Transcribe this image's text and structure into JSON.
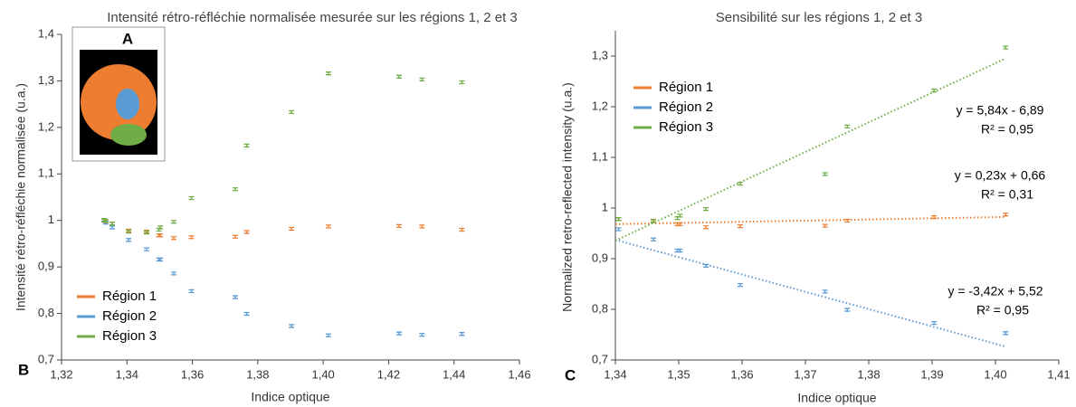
{
  "chart_data": [
    {
      "type": "scatter",
      "panel": "B",
      "inset_label": "A",
      "title": "Intensité rétro-réfléchie normalisée mesurée sur les régions 1, 2 et 3",
      "x_label": "Indice optique",
      "y_label": "Intensité rétro-réfléchie normalisée (u.a.)",
      "x": [
        1.333,
        1.3335,
        1.3355,
        1.3405,
        1.346,
        1.3498,
        1.3502,
        1.3543,
        1.3597,
        1.3731,
        1.3766,
        1.3903,
        1.4016,
        1.4232,
        1.4302,
        1.4424
      ],
      "series": [
        {
          "name": "Région 1",
          "color": "#ed7d31",
          "values": [
            1.0,
            0.998,
            0.993,
            0.978,
            0.976,
            0.968,
            0.968,
            0.962,
            0.964,
            0.965,
            0.975,
            0.982,
            0.987,
            0.988,
            0.987,
            0.98
          ]
        },
        {
          "name": "Région 2",
          "color": "#5b9bd5",
          "values": [
            1.0,
            0.995,
            0.985,
            0.958,
            0.938,
            0.916,
            0.916,
            0.886,
            0.848,
            0.835,
            0.799,
            0.773,
            0.753,
            0.757,
            0.754,
            0.756
          ]
        },
        {
          "name": "Région 3",
          "color": "#70ad47",
          "values": [
            1.001,
            0.999,
            0.993,
            0.976,
            0.974,
            0.98,
            0.985,
            0.997,
            1.048,
            1.067,
            1.161,
            1.233,
            1.316,
            1.309,
            1.303,
            1.297
          ]
        }
      ],
      "xlim": [
        1.32,
        1.46
      ],
      "xticks": [
        {
          "value": 1.32,
          "label": "1,32"
        },
        {
          "value": 1.34,
          "label": "1,34"
        },
        {
          "value": 1.36,
          "label": "1,36"
        },
        {
          "value": 1.38,
          "label": "1,38"
        },
        {
          "value": 1.4,
          "label": "1,40"
        },
        {
          "value": 1.42,
          "label": "1,42"
        },
        {
          "value": 1.44,
          "label": "1,44"
        },
        {
          "value": 1.46,
          "label": "1,46"
        }
      ],
      "ylim": [
        0.7,
        1.4
      ],
      "yticks": [
        {
          "value": 0.7,
          "label": "0,7"
        },
        {
          "value": 0.8,
          "label": "0,8"
        },
        {
          "value": 0.9,
          "label": "0,9"
        },
        1,
        {
          "value": 1.1,
          "label": "1,1"
        },
        {
          "value": 1.2,
          "label": "1,2"
        },
        {
          "value": 1.3,
          "label": "1,3"
        },
        {
          "value": 1.4,
          "label": "1,4"
        }
      ],
      "legend": "lower left"
    },
    {
      "type": "scatter",
      "panel": "C",
      "title": "Sensibilité sur les régions 1, 2 et 3",
      "x_label": "Indice optique",
      "y_label": "Normalized retro-reflected intensity  (u.a.)",
      "x": [
        1.3405,
        1.346,
        1.3498,
        1.3502,
        1.3543,
        1.3597,
        1.3731,
        1.3766,
        1.3903,
        1.4016
      ],
      "series": [
        {
          "name": "Région 1",
          "color": "#ed7d31",
          "values": [
            0.978,
            0.975,
            0.968,
            0.968,
            0.962,
            0.964,
            0.965,
            0.975,
            0.982,
            0.987
          ],
          "trendline": {
            "slope": 0.23,
            "intercept": 0.66,
            "label": "y = 0,23x + 0,66",
            "r2": {
              "value": 0.31,
              "label": "R² = 0,31"
            }
          }
        },
        {
          "name": "Région 2",
          "color": "#5b9bd5",
          "values": [
            0.958,
            0.938,
            0.916,
            0.916,
            0.886,
            0.848,
            0.835,
            0.799,
            0.773,
            0.753
          ],
          "trendline": {
            "slope": -3.42,
            "intercept": 5.52,
            "label": "y = -3,42x + 5,52",
            "r2": {
              "value": 0.95,
              "label": "R² = 0,95"
            }
          }
        },
        {
          "name": "Région 3",
          "color": "#70ad47",
          "values": [
            0.978,
            0.974,
            0.98,
            0.985,
            0.998,
            1.048,
            1.067,
            1.161,
            1.232,
            1.317
          ],
          "trendline": {
            "slope": 5.84,
            "intercept": -6.89,
            "label": "y = 5,84x - 6,89",
            "r2": {
              "value": 0.95,
              "label": "R² = 0,95"
            }
          }
        }
      ],
      "xlim": [
        1.34,
        1.41
      ],
      "xticks": [
        {
          "value": 1.34,
          "label": "1,34"
        },
        {
          "value": 1.35,
          "label": "1,35"
        },
        {
          "value": 1.36,
          "label": "1,36"
        },
        {
          "value": 1.37,
          "label": "1,37"
        },
        {
          "value": 1.38,
          "label": "1,38"
        },
        {
          "value": 1.39,
          "label": "1,39"
        },
        {
          "value": 1.4,
          "label": "1,40"
        },
        {
          "value": 1.41,
          "label": "1,41"
        }
      ],
      "ylim": [
        0.7,
        1.35
      ],
      "yticks": [
        {
          "value": 0.7,
          "label": "0,7"
        },
        {
          "value": 0.8,
          "label": "0,8"
        },
        {
          "value": 0.9,
          "label": "0,9"
        },
        1,
        {
          "value": 1.1,
          "label": "1,1"
        },
        {
          "value": 1.2,
          "label": "1,2"
        },
        {
          "value": 1.3,
          "label": "1,3"
        }
      ],
      "legend": "upper left"
    }
  ]
}
